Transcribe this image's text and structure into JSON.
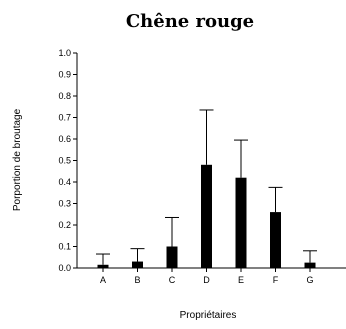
{
  "chart_data": {
    "type": "bar",
    "title": "Chêne rouge",
    "xlabel": "Propriétaires",
    "ylabel": "Porportion de broutage",
    "categories": [
      "A",
      "B",
      "C",
      "D",
      "E",
      "F",
      "G"
    ],
    "values": [
      0.015,
      0.03,
      0.1,
      0.48,
      0.42,
      0.26,
      0.025
    ],
    "error_upper": [
      0.065,
      0.09,
      0.235,
      0.735,
      0.595,
      0.375,
      0.08
    ],
    "ylim": [
      0.0,
      1.0
    ],
    "yticks": [
      "0.0",
      "0.1",
      "0.2",
      "0.3",
      "0.4",
      "0.5",
      "0.6",
      "0.7",
      "0.8",
      "0.9",
      "1.0"
    ],
    "grid": false,
    "bar_color": "#000000"
  }
}
